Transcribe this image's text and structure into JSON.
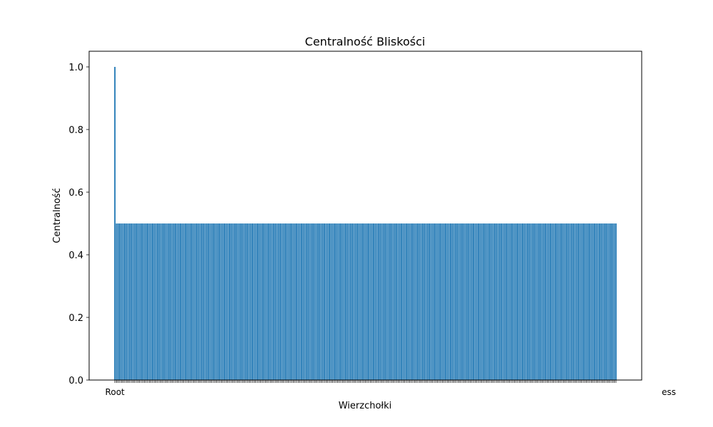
{
  "chart_data": {
    "type": "bar",
    "title": "Centralność Bliskości",
    "xlabel": "Wierzchołki",
    "ylabel": "Centralność",
    "ylim": [
      0,
      1.05
    ],
    "yticks": [
      "0.0",
      "0.2",
      "0.4",
      "0.6",
      "0.8",
      "1.0"
    ],
    "grid": false,
    "bar_color": "#1f77b4",
    "first_category": "Root",
    "last_category": "ess",
    "first_value": 1.0,
    "rest_value": 0.5,
    "category_count": 307
  }
}
